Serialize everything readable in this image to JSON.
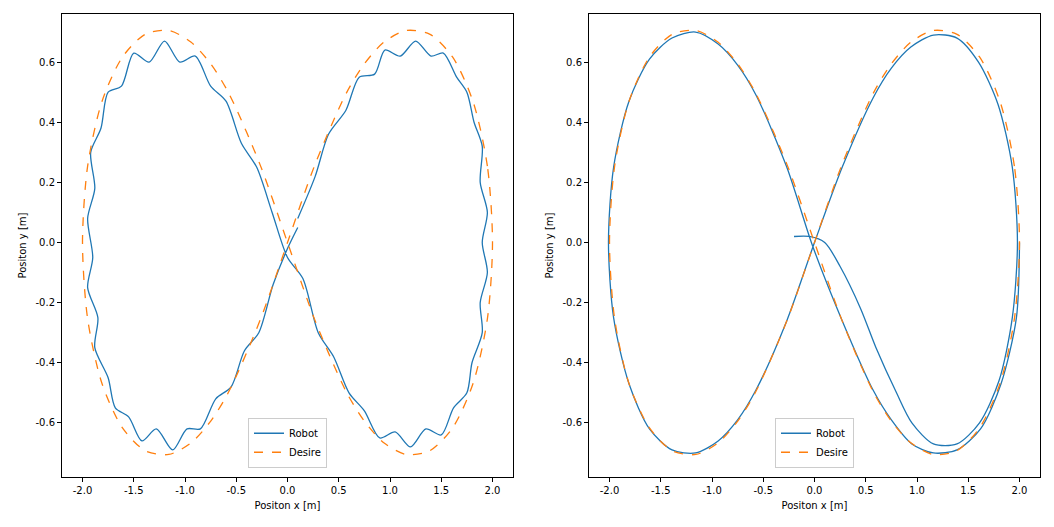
{
  "chart_data": [
    {
      "type": "line",
      "x_label": "Positon x [m]",
      "y_label": "Positon y [m]",
      "xlim": [
        -2.2,
        2.2
      ],
      "ylim": [
        -0.78,
        0.76
      ],
      "xticks": [
        {
          "value": -2.0,
          "label": "-2.0"
        },
        {
          "value": -1.5,
          "label": "-1.5"
        },
        {
          "value": -1.0,
          "label": "-1.0"
        },
        {
          "value": -0.5,
          "label": "-0.5"
        },
        {
          "value": 0.0,
          "label": "0.0"
        },
        {
          "value": 0.5,
          "label": "0.5"
        },
        {
          "value": 1.0,
          "label": "1.0"
        },
        {
          "value": 1.5,
          "label": "1.5"
        },
        {
          "value": 2.0,
          "label": "2.0"
        }
      ],
      "yticks": [
        {
          "value": -0.6,
          "label": "-0.6"
        },
        {
          "value": -0.4,
          "label": "-0.4"
        },
        {
          "value": -0.2,
          "label": "-0.2"
        },
        {
          "value": 0.0,
          "label": "0.0"
        },
        {
          "value": 0.2,
          "label": "0.2"
        },
        {
          "value": 0.4,
          "label": "0.4"
        },
        {
          "value": 0.6,
          "label": "0.6"
        }
      ],
      "grid": false,
      "legend": "lower center",
      "series": [
        {
          "name": "Robot",
          "color": "#1f77b4",
          "line_style": "solid",
          "x": [
            0.1,
            0.27,
            0.4,
            0.57,
            0.7,
            0.85,
            0.95,
            1.1,
            1.25,
            1.4,
            1.52,
            1.65,
            1.75,
            1.82,
            1.9,
            1.88,
            1.95,
            1.9,
            1.95,
            1.88,
            1.9,
            1.8,
            1.75,
            1.62,
            1.5,
            1.35,
            1.2,
            1.05,
            0.9,
            0.75,
            0.6,
            0.45,
            0.3,
            0.15,
            0,
            -0.15,
            -0.3,
            -0.45,
            -0.6,
            -0.75,
            -0.9,
            -1.05,
            -1.2,
            -1.35,
            -1.5,
            -1.62,
            -1.75,
            -1.82,
            -1.92,
            -1.88,
            -1.95,
            -1.9,
            -1.95,
            -1.85,
            -1.88,
            -1.75,
            -1.68,
            -1.55,
            -1.42,
            -1.28,
            -1.12,
            -0.98,
            -0.85,
            -0.7,
            -0.55,
            -0.42,
            -0.28,
            -0.14,
            0,
            0.1
          ],
          "values": [
            0.08,
            0.22,
            0.36,
            0.44,
            0.55,
            0.56,
            0.64,
            0.62,
            0.67,
            0.62,
            0.63,
            0.55,
            0.5,
            0.4,
            0.32,
            0.2,
            0.1,
            0,
            -0.1,
            -0.2,
            -0.3,
            -0.4,
            -0.5,
            -0.55,
            -0.64,
            -0.62,
            -0.68,
            -0.63,
            -0.65,
            -0.56,
            -0.5,
            -0.38,
            -0.3,
            -0.12,
            -0.05,
            0.1,
            0.25,
            0.33,
            0.47,
            0.52,
            0.62,
            0.6,
            0.67,
            0.6,
            0.63,
            0.52,
            0.5,
            0.38,
            0.3,
            0.18,
            0.08,
            -0.05,
            -0.15,
            -0.25,
            -0.35,
            -0.45,
            -0.55,
            -0.58,
            -0.66,
            -0.62,
            -0.69,
            -0.62,
            -0.62,
            -0.52,
            -0.48,
            -0.36,
            -0.3,
            -0.14,
            -0.02,
            0.05
          ]
        },
        {
          "name": "Desire",
          "color": "#ff7f0e",
          "line_style": "dashed",
          "x": [
            2,
            1.95,
            1.81,
            1.61,
            1.386,
            1.158,
            0.943,
            0.747,
            0.571,
            0.268,
            0,
            -0.268,
            -0.571,
            -0.747,
            -0.943,
            -1.158,
            -1.386,
            -1.61,
            -1.81,
            -1.95,
            -2,
            -1.95,
            -1.81,
            -1.61,
            -1.386,
            -1.158,
            -0.943,
            -0.747,
            -0.571,
            -0.268,
            0,
            0.268,
            0.571,
            0.747,
            0.943,
            1.158,
            1.386,
            1.61,
            1.81,
            1.95,
            2
          ],
          "values": [
            0,
            0.254,
            0.469,
            0.617,
            0.693,
            0.705,
            0.667,
            0.593,
            0.495,
            0.259,
            0,
            -0.259,
            -0.495,
            -0.593,
            -0.667,
            -0.705,
            -0.693,
            -0.617,
            -0.469,
            -0.254,
            0,
            0.254,
            0.469,
            0.617,
            0.693,
            0.705,
            0.667,
            0.593,
            0.495,
            0.259,
            0,
            -0.259,
            -0.495,
            -0.593,
            -0.667,
            -0.705,
            -0.693,
            -0.617,
            -0.469,
            -0.254,
            0
          ]
        }
      ]
    },
    {
      "type": "line",
      "x_label": "Positon x [m]",
      "y_label": "Positon y [m]",
      "xlim": [
        -2.2,
        2.2
      ],
      "ylim": [
        -0.78,
        0.76
      ],
      "xticks": [
        {
          "value": -2.0,
          "label": "-2.0"
        },
        {
          "value": -1.5,
          "label": "-1.5"
        },
        {
          "value": -1.0,
          "label": "-1.0"
        },
        {
          "value": -0.5,
          "label": "-0.5"
        },
        {
          "value": 0.0,
          "label": "0.0"
        },
        {
          "value": 0.5,
          "label": "0.5"
        },
        {
          "value": 1.0,
          "label": "1.0"
        },
        {
          "value": 1.5,
          "label": "1.5"
        },
        {
          "value": 2.0,
          "label": "2.0"
        }
      ],
      "yticks": [
        {
          "value": -0.6,
          "label": "-0.6"
        },
        {
          "value": -0.4,
          "label": "-0.4"
        },
        {
          "value": -0.2,
          "label": "-0.2"
        },
        {
          "value": 0.0,
          "label": "0.0"
        },
        {
          "value": 0.2,
          "label": "0.2"
        },
        {
          "value": 0.4,
          "label": "0.4"
        },
        {
          "value": 0.6,
          "label": "0.6"
        }
      ],
      "grid": false,
      "legend": "lower center",
      "series": [
        {
          "name": "Robot",
          "color": "#1f77b4",
          "line_style": "solid",
          "x": [
            -0.2,
            -0.05,
            0.1,
            0.25,
            0.45,
            0.6,
            0.8,
            0.95,
            1.16,
            1.39,
            1.61,
            1.8,
            1.93,
            1.98,
            1.93,
            1.79,
            1.6,
            1.39,
            1.16,
            0.94,
            0.75,
            0.57,
            0.27,
            0,
            -0.27,
            -0.57,
            -0.75,
            -0.94,
            -1.16,
            -1.39,
            -1.61,
            -1.81,
            -1.96,
            -2.01,
            -1.96,
            -1.81,
            -1.61,
            -1.39,
            -1.16,
            -0.94,
            -0.75,
            -0.57,
            -0.27,
            -0.02,
            0.27,
            0.57,
            0.75,
            0.95,
            1.16,
            1.39,
            1.62,
            1.82,
            1.97,
            2.0
          ],
          "values": [
            0.02,
            0.02,
            0,
            -0.08,
            -0.22,
            -0.35,
            -0.5,
            -0.6,
            -0.67,
            -0.67,
            -0.6,
            -0.46,
            -0.25,
            0,
            0.25,
            0.46,
            0.6,
            0.68,
            0.69,
            0.65,
            0.58,
            0.48,
            0.25,
            0,
            -0.26,
            -0.49,
            -0.59,
            -0.66,
            -0.7,
            -0.69,
            -0.62,
            -0.47,
            -0.25,
            0,
            0.25,
            0.47,
            0.61,
            0.68,
            0.7,
            0.66,
            0.59,
            0.49,
            0.25,
            -0.01,
            -0.26,
            -0.49,
            -0.59,
            -0.67,
            -0.7,
            -0.69,
            -0.62,
            -0.47,
            -0.25,
            0
          ]
        },
        {
          "name": "Desire",
          "color": "#ff7f0e",
          "line_style": "dashed",
          "x": [
            2,
            1.95,
            1.81,
            1.61,
            1.386,
            1.158,
            0.943,
            0.747,
            0.571,
            0.268,
            0,
            -0.268,
            -0.571,
            -0.747,
            -0.943,
            -1.158,
            -1.386,
            -1.61,
            -1.81,
            -1.95,
            -2,
            -1.95,
            -1.81,
            -1.61,
            -1.386,
            -1.158,
            -0.943,
            -0.747,
            -0.571,
            -0.268,
            0,
            0.268,
            0.571,
            0.747,
            0.943,
            1.158,
            1.386,
            1.61,
            1.81,
            1.95,
            2
          ],
          "values": [
            0,
            0.254,
            0.469,
            0.617,
            0.693,
            0.705,
            0.667,
            0.593,
            0.495,
            0.259,
            0,
            -0.259,
            -0.495,
            -0.593,
            -0.667,
            -0.705,
            -0.693,
            -0.617,
            -0.469,
            -0.254,
            0,
            0.254,
            0.469,
            0.617,
            0.693,
            0.705,
            0.667,
            0.593,
            0.495,
            0.259,
            0,
            -0.259,
            -0.495,
            -0.593,
            -0.667,
            -0.705,
            -0.693,
            -0.617,
            -0.469,
            -0.254,
            0
          ]
        }
      ]
    }
  ]
}
